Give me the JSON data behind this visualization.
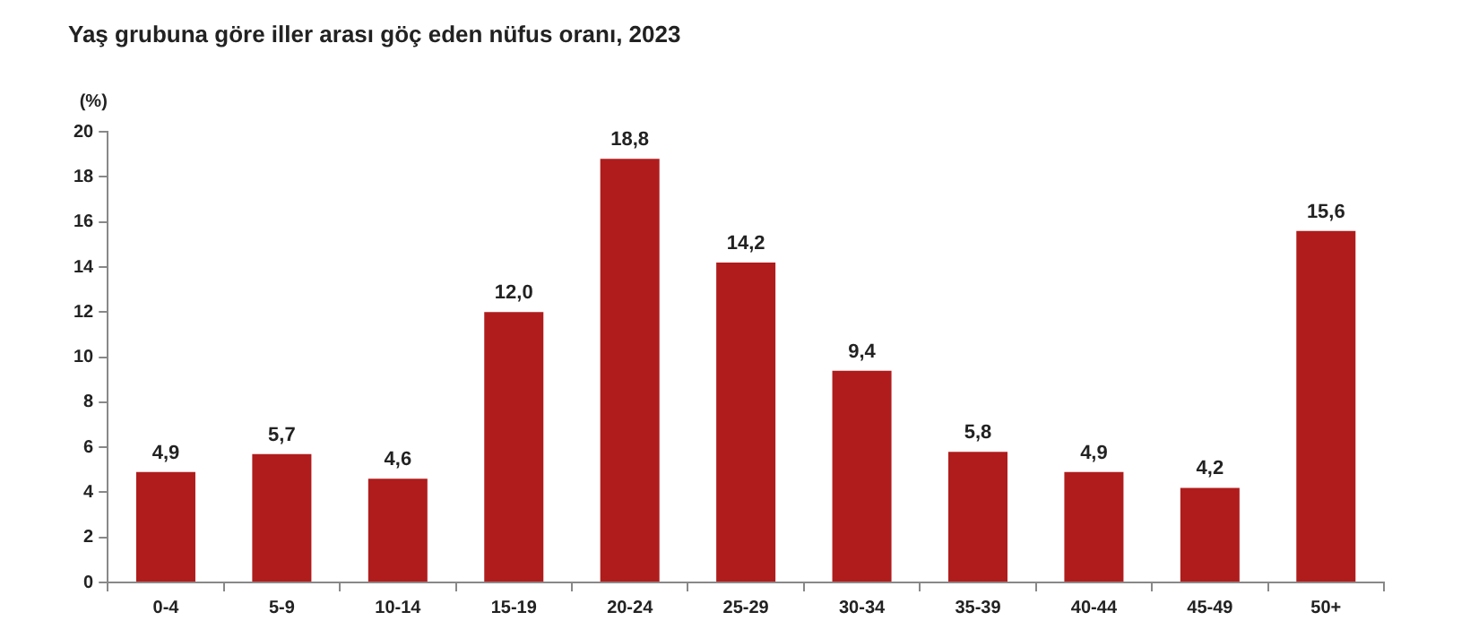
{
  "chart_data": {
    "type": "bar",
    "title": "Yaş grubuna göre iller arası göç eden nüfus oranı, 2023",
    "ylabel": "(%)",
    "categories": [
      "0-4",
      "5-9",
      "10-14",
      "15-19",
      "20-24",
      "25-29",
      "30-34",
      "35-39",
      "40-44",
      "45-49",
      "50+"
    ],
    "values": [
      4.9,
      5.7,
      4.6,
      12.0,
      18.8,
      14.2,
      9.4,
      5.8,
      4.9,
      4.2,
      15.6
    ],
    "value_labels": [
      "4,9",
      "5,7",
      "4,6",
      "12,0",
      "18,8",
      "14,2",
      "9,4",
      "5,8",
      "4,9",
      "4,2",
      "15,6"
    ],
    "color": "#b01c1c",
    "ylim": [
      0,
      20
    ],
    "yticks": [
      0,
      2,
      4,
      6,
      8,
      10,
      12,
      14,
      16,
      18,
      20
    ],
    "grid": false,
    "legend": false
  }
}
